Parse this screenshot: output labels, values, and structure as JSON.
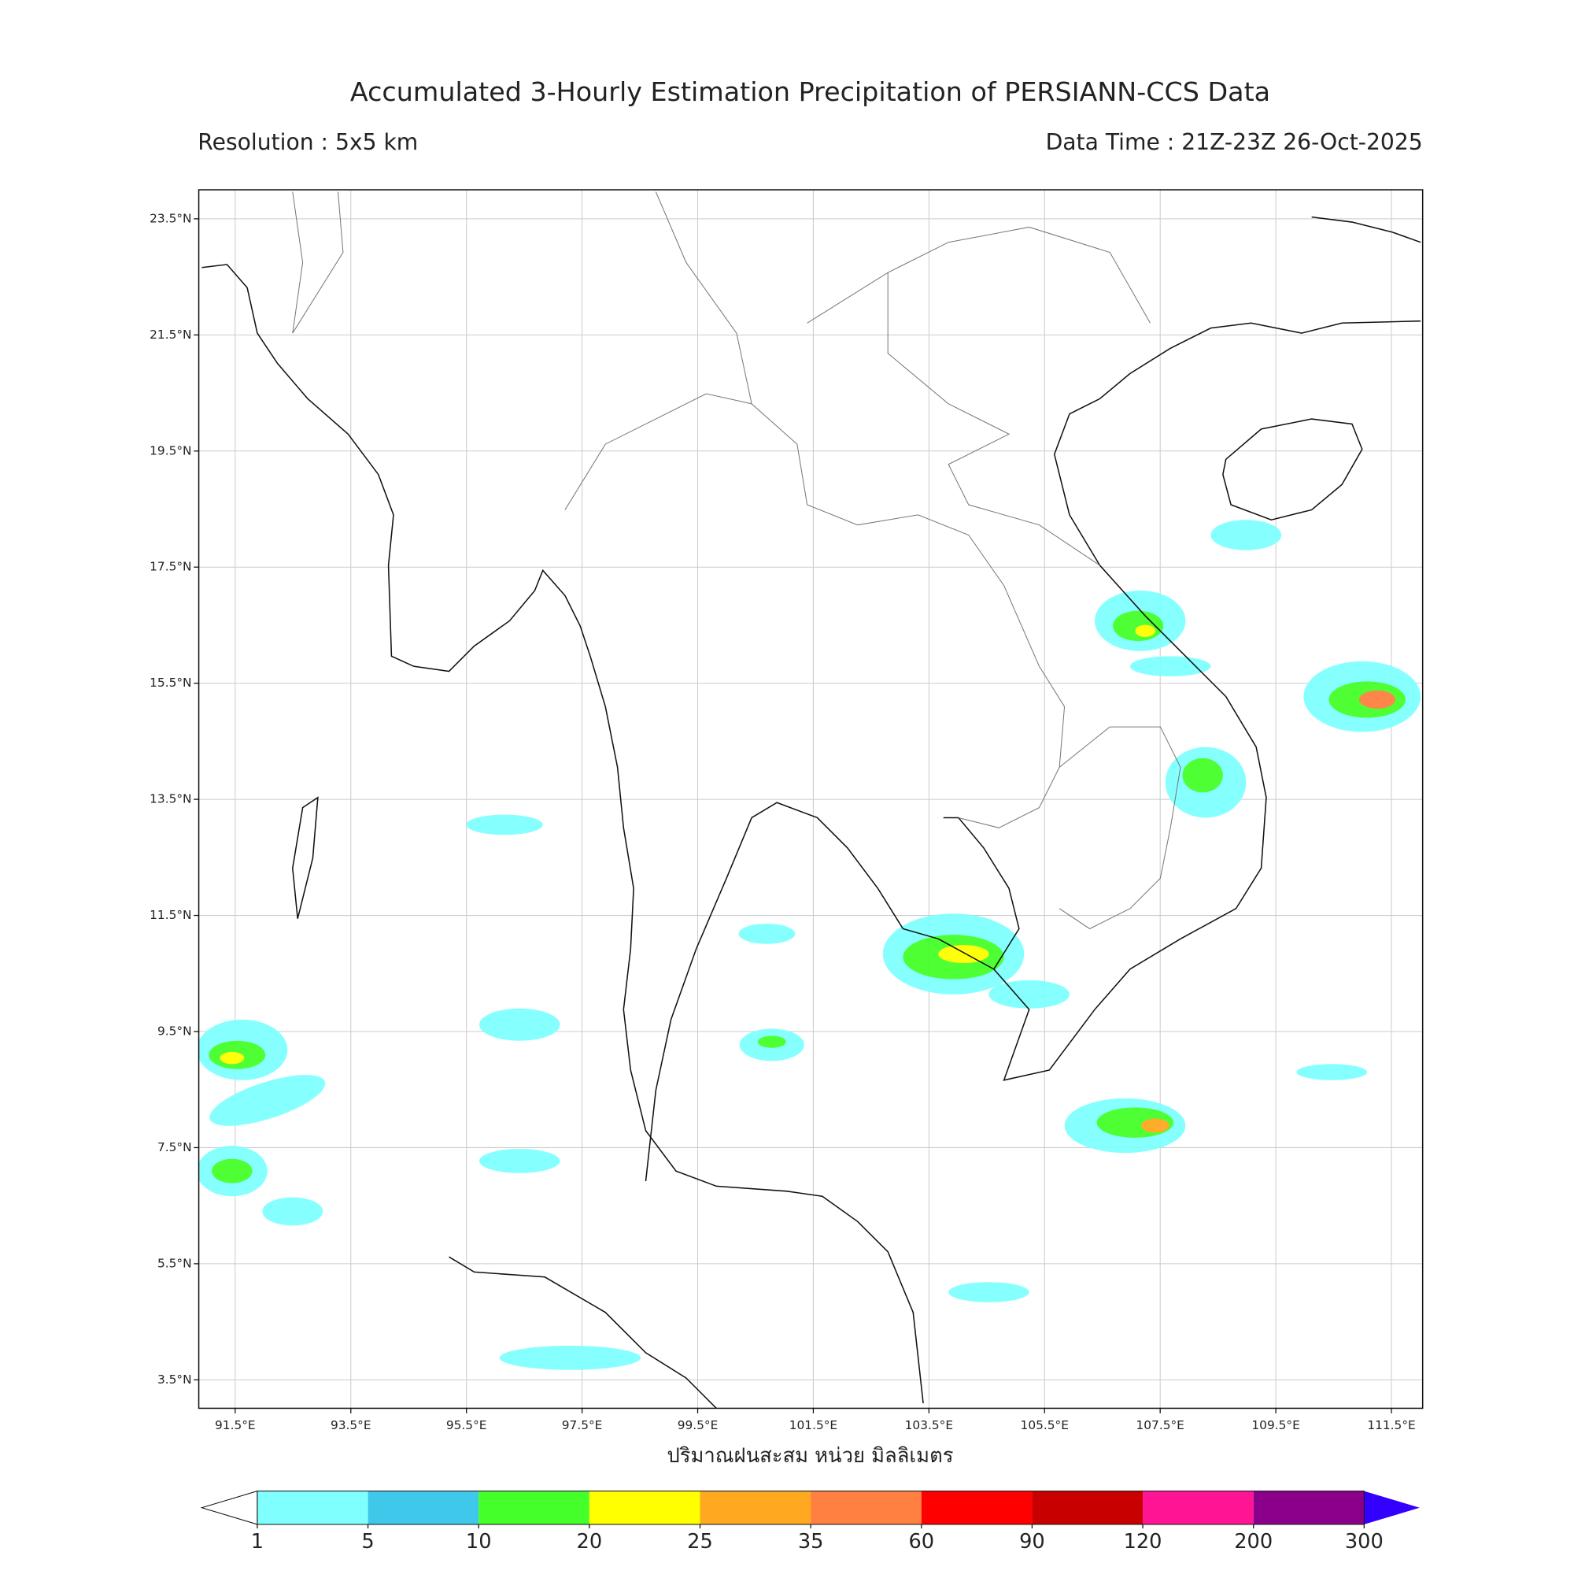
{
  "map": {
    "title": "Accumulated 3-Hourly Estimation Precipitation of PERSIANN-CCS Data",
    "resolution": "Resolution : 5x5 km",
    "data_time": "Data Time : 21Z-23Z 26-Oct-2025",
    "xlabel": "ปริมาณฝนสะสม หน่วย มิลลิเมตร",
    "xlim": [
      90.87,
      112.04
    ],
    "ylim": [
      3.01,
      24.0
    ],
    "grid": true,
    "xticks": [
      {
        "value": 91.5,
        "label": "91.5°E"
      },
      {
        "value": 93.5,
        "label": "93.5°E"
      },
      {
        "value": 95.5,
        "label": "95.5°E"
      },
      {
        "value": 97.5,
        "label": "97.5°E"
      },
      {
        "value": 99.5,
        "label": "99.5°E"
      },
      {
        "value": 101.5,
        "label": "101.5°E"
      },
      {
        "value": 103.5,
        "label": "103.5°E"
      },
      {
        "value": 105.5,
        "label": "105.5°E"
      },
      {
        "value": 107.5,
        "label": "107.5°E"
      },
      {
        "value": 109.5,
        "label": "109.5°E"
      },
      {
        "value": 111.5,
        "label": "111.5°E"
      }
    ],
    "yticks": [
      {
        "value": 23.5,
        "label": "23.5°N"
      },
      {
        "value": 21.5,
        "label": "21.5°N"
      },
      {
        "value": 19.5,
        "label": "19.5°N"
      },
      {
        "value": 17.5,
        "label": "17.5°N"
      },
      {
        "value": 15.5,
        "label": "15.5°N"
      },
      {
        "value": 13.5,
        "label": "13.5°N"
      },
      {
        "value": 11.5,
        "label": "11.5°N"
      },
      {
        "value": 9.5,
        "label": "9.5°N"
      },
      {
        "value": 7.5,
        "label": "7.5°N"
      },
      {
        "value": 5.5,
        "label": "5.5°N"
      },
      {
        "value": 3.5,
        "label": "3.5°N"
      }
    ],
    "colorbar": {
      "levels": [
        1,
        5,
        10,
        20,
        25,
        35,
        60,
        90,
        120,
        200,
        300
      ],
      "colors": [
        "#80ffff",
        "#40c8ea",
        "#45ff2a",
        "#ffff00",
        "#ffa820",
        "#ff8040",
        "#ff0000",
        "#c80000",
        "#ff1493",
        "#8b008b"
      ],
      "under_color": "#ffffff",
      "over_color": "#3300ff"
    }
  }
}
